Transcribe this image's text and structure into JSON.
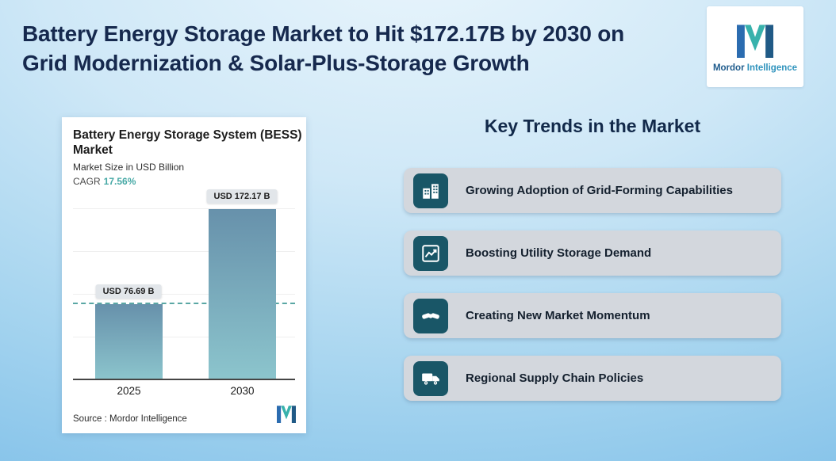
{
  "header": {
    "title_line1": "Battery Energy Storage Market to Hit $172.17B by 2030 on",
    "title_line2": "Grid Modernization & Solar-Plus-Storage Growth"
  },
  "brand": {
    "logo_icon": "mordor-m-logo-icon",
    "name_part1": "Mordor",
    "name_part2": "Intelligence"
  },
  "chart_card": {
    "title_line1": "Battery Energy Storage System (BESS)",
    "title_line2": "Market",
    "subtitle": "Market Size in USD Billion",
    "cagr_label": "CAGR",
    "cagr_value": "17.56%",
    "source_label": "Source :  Mordor Intelligence"
  },
  "chart_data": {
    "type": "bar",
    "title": "Battery Energy Storage System (BESS) Market",
    "subtitle": "Market Size in USD Billion",
    "cagr_percent": 17.56,
    "categories": [
      "2025",
      "2030"
    ],
    "values": [
      76.69,
      172.17
    ],
    "value_labels": [
      "USD 76.69 B",
      "USD 172.17 B"
    ],
    "unit": "USD Billion",
    "ylim": [
      0,
      190
    ],
    "grid": "faint-horizontal",
    "legend": "none",
    "bar_gradient": [
      "#6791ab",
      "#8cc5cd"
    ],
    "reference_line": {
      "at_value": 76.69,
      "style": "dashed",
      "color": "#5aa7a4"
    },
    "source": "Mordor Intelligence"
  },
  "trends": {
    "heading": "Key Trends in the Market",
    "items": [
      {
        "icon": "buildings-icon",
        "label": "Growing Adoption of Grid-Forming Capabilities"
      },
      {
        "icon": "line-chart-icon",
        "label": "Boosting Utility Storage Demand"
      },
      {
        "icon": "handshake-icon",
        "label": "Creating New Market Momentum"
      },
      {
        "icon": "delivery-truck-icon",
        "label": "Regional Supply Chain Policies"
      }
    ]
  },
  "colors": {
    "title_navy": "#16294e",
    "accent_teal": "#47a9a6",
    "icon_box": "#195667",
    "trend_card_bg": "#d3d7dd",
    "background_top": "#e9f5fc",
    "background_bottom": "#82c1e9"
  }
}
